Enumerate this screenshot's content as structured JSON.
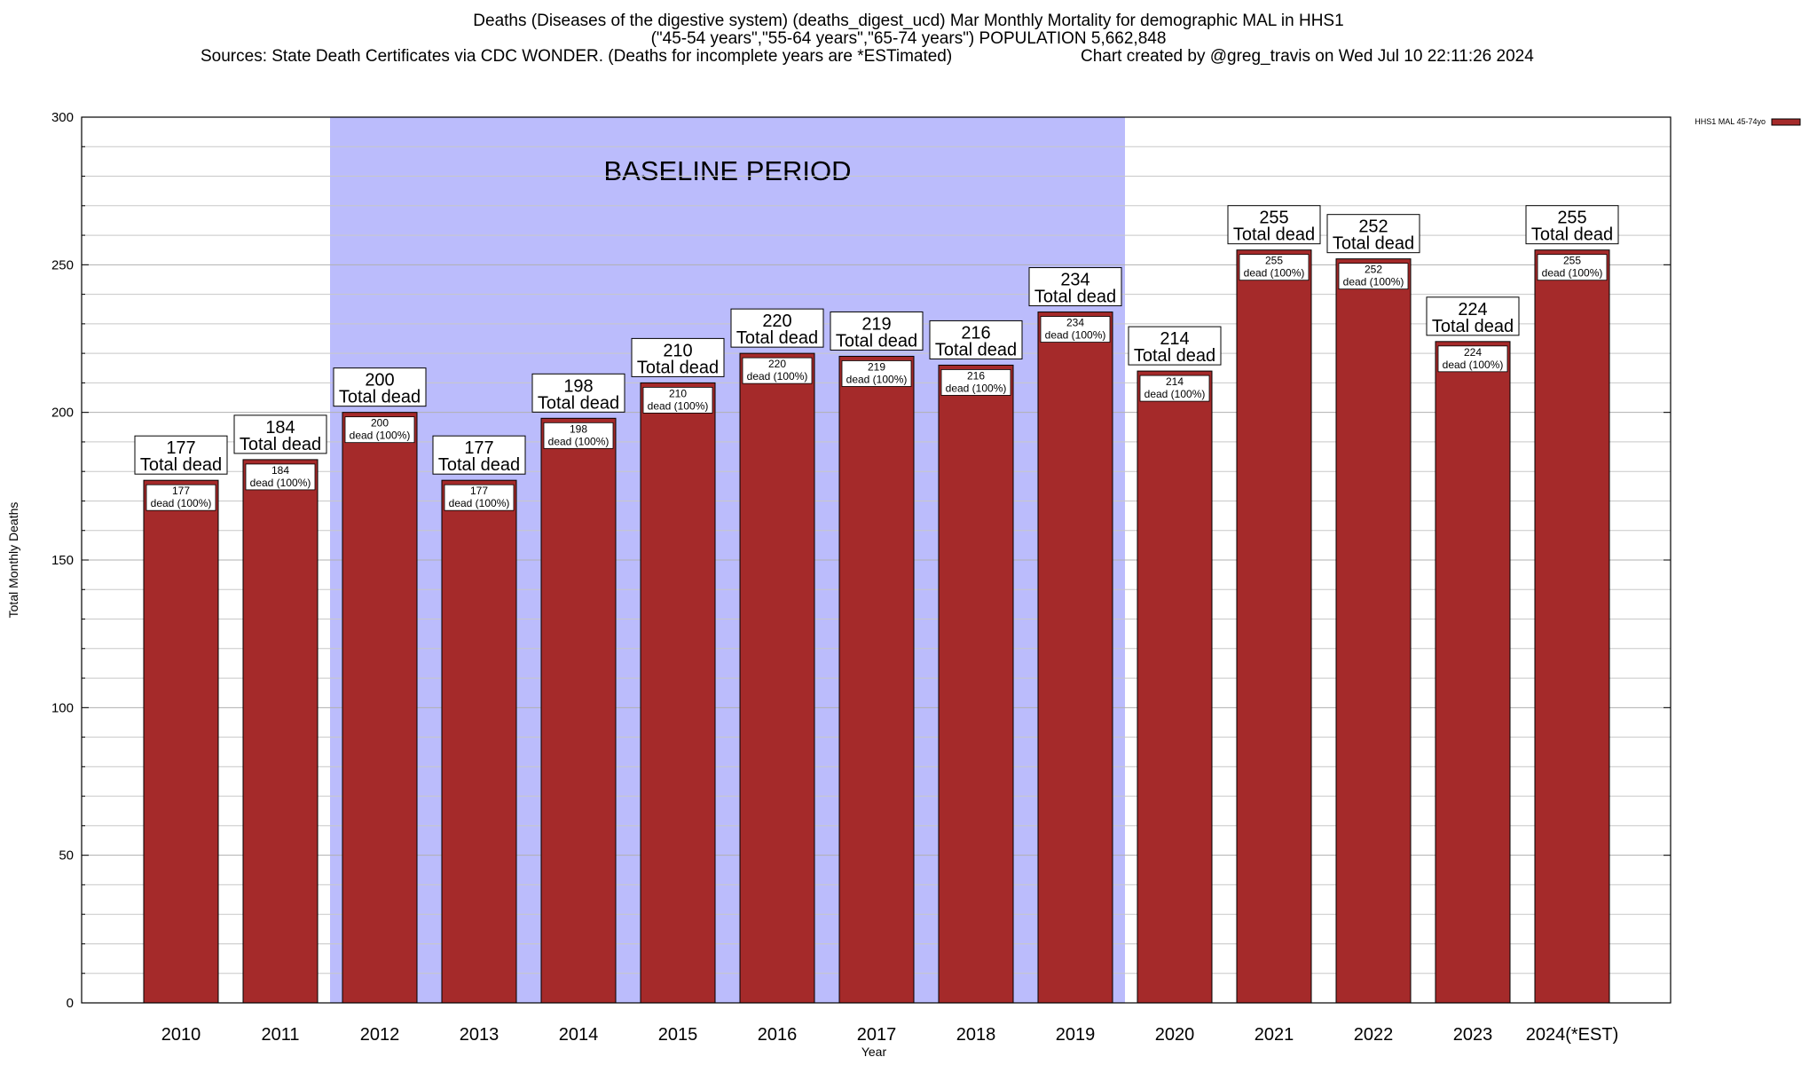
{
  "chart_data": {
    "type": "bar",
    "title": "Deaths (Diseases of the digestive system) (deaths_digest_ucd) Mar Monthly Mortality for demographic MAL in HHS1",
    "subtitle": "(\"45-54 years\",\"55-64 years\",\"65-74 years\") POPULATION 5,662,848",
    "source": "Sources: State Death Certificates via CDC WONDER. (Deaths for incomplete years are *ESTimated)",
    "credit": "Chart created by @greg_travis on Wed Jul 10 22:11:26 2024",
    "xlabel": "Year",
    "ylabel": "Total Monthly Deaths",
    "ylim": [
      0,
      300
    ],
    "yticks": [
      0,
      50,
      100,
      150,
      200,
      250,
      300
    ],
    "grid": true,
    "legend": {
      "position": "top-right",
      "entries": [
        "HHS1 MAL 45-74yo"
      ]
    },
    "categories": [
      "2010",
      "2011",
      "2012",
      "2013",
      "2014",
      "2015",
      "2016",
      "2017",
      "2018",
      "2019",
      "2020",
      "2021",
      "2022",
      "2023",
      "2024(*EST)"
    ],
    "series": [
      {
        "name": "HHS1 MAL 45-74yo",
        "color": "#a52a2a",
        "values": [
          177,
          184,
          200,
          177,
          198,
          210,
          220,
          219,
          216,
          234,
          214,
          255,
          252,
          224,
          255
        ]
      }
    ],
    "bar_label_suffix": "Total dead",
    "inner_label_suffix": "dead (100%)",
    "baseline_period": {
      "label": "BASELINE PERIOD",
      "from": "2012",
      "to": "2019",
      "color": "#bbbcfc"
    }
  }
}
